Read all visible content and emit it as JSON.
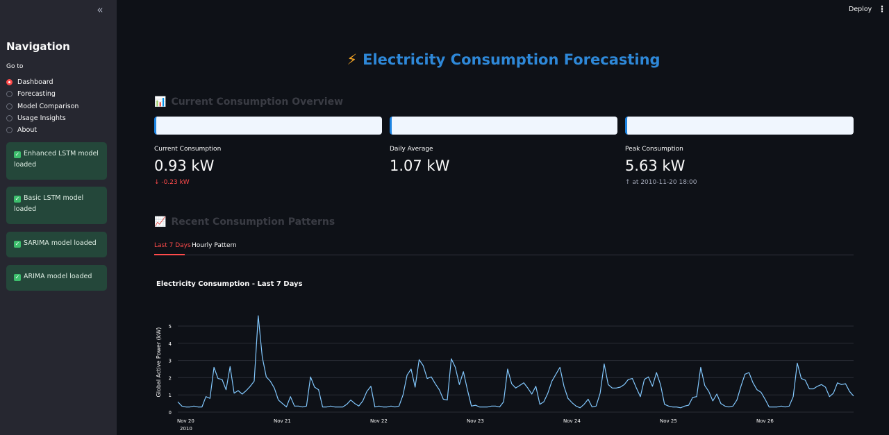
{
  "sidebar": {
    "collapse_icon": "«",
    "title": "Navigation",
    "goto_label": "Go to",
    "nav_items": [
      {
        "label": "Dashboard",
        "selected": true
      },
      {
        "label": "Forecasting",
        "selected": false
      },
      {
        "label": "Model Comparison",
        "selected": false
      },
      {
        "label": "Usage Insights",
        "selected": false
      },
      {
        "label": "About",
        "selected": false
      }
    ],
    "alerts": [
      {
        "text": "Enhanced LSTM model loaded"
      },
      {
        "text": "Basic LSTM model loaded"
      },
      {
        "text": "SARIMA model loaded"
      },
      {
        "text": "ARIMA model loaded"
      }
    ]
  },
  "topbar": {
    "deploy_label": "Deploy",
    "menu_icon": "⋮"
  },
  "header": {
    "icon": "⚡",
    "title": "Electricity Consumption Forecasting"
  },
  "overview": {
    "heading_icon": "📊",
    "heading": "Current Consumption Overview",
    "metrics": [
      {
        "label": "Current Consumption",
        "value": "0.93 kW",
        "delta": "-0.23 kW",
        "delta_icon": "↓"
      },
      {
        "label": "Daily Average",
        "value": "1.07 kW"
      },
      {
        "label": "Peak Consumption",
        "value": "5.63 kW",
        "delta": "at 2010-11-20 18:00",
        "delta_icon": "↑"
      }
    ]
  },
  "patterns": {
    "heading_icon": "📈",
    "heading": "Recent Consumption Patterns",
    "tabs": [
      {
        "label": "Last 7 Days",
        "active": true
      },
      {
        "label": "Hourly Pattern",
        "active": false
      }
    ]
  },
  "colors": {
    "accent": "#ff4b4b",
    "title_blue": "#2e88d8",
    "line": "#83c9ff",
    "success_bg": "#24473a"
  },
  "chart_data": {
    "type": "line",
    "title": "Electricity Consumption - Last 7 Days",
    "ylabel": "Global Active Power (kW)",
    "xlabel": "",
    "x_tick_labels": [
      "Nov 20",
      "Nov 21",
      "Nov 22",
      "Nov 23",
      "Nov 24",
      "Nov 25",
      "Nov 26"
    ],
    "x_year_label": "2010",
    "y_ticks": [
      0,
      1,
      2,
      3,
      4,
      5
    ],
    "ylim": [
      0,
      5.6
    ],
    "x_start": "2010-11-20 00:00",
    "frequency": "hourly",
    "grid": true,
    "series": [
      {
        "values": [
          0.6,
          0.35,
          0.3,
          0.3,
          0.35,
          0.3,
          0.3,
          0.9,
          0.8,
          2.6,
          1.95,
          1.9,
          1.3,
          2.65,
          1.1,
          1.25,
          1.05,
          1.25,
          1.5,
          1.8,
          5.6,
          3.2,
          2.05,
          1.8,
          1.4,
          0.7,
          0.5,
          0.3,
          0.9,
          0.35,
          0.35,
          0.3,
          0.35,
          2.05,
          1.45,
          1.3,
          0.3,
          0.3,
          0.35,
          0.3,
          0.3,
          0.3,
          0.45,
          0.7,
          0.5,
          0.35,
          0.65,
          1.2,
          1.5,
          0.3,
          0.35,
          0.3,
          0.3,
          0.35,
          0.3,
          0.35,
          1.0,
          2.15,
          2.5,
          1.45,
          3.05,
          2.7,
          1.95,
          2.05,
          1.65,
          1.3,
          0.75,
          0.7,
          3.1,
          2.6,
          1.6,
          2.35,
          1.3,
          0.35,
          0.4,
          0.3,
          0.3,
          0.3,
          0.35,
          0.35,
          0.3,
          0.6,
          2.5,
          1.65,
          1.4,
          1.55,
          1.7,
          1.4,
          1.05,
          1.5,
          0.45,
          0.6,
          1.1,
          1.8,
          2.2,
          2.6,
          1.5,
          0.8,
          0.55,
          0.35,
          0.25,
          0.45,
          0.75,
          0.3,
          0.35,
          1.1,
          2.8,
          1.6,
          1.4,
          1.4,
          1.45,
          1.6,
          1.9,
          1.95,
          1.4,
          0.9,
          1.9,
          2.05,
          1.5,
          2.3,
          1.6,
          0.45,
          0.35,
          0.3,
          0.3,
          0.25,
          0.35,
          0.4,
          0.85,
          0.9,
          2.6,
          1.55,
          1.2,
          0.65,
          1.05,
          0.5,
          0.35,
          0.3,
          0.35,
          0.7,
          1.5,
          2.2,
          2.3,
          1.7,
          1.3,
          1.15,
          0.75,
          0.3,
          0.3,
          0.3,
          0.35,
          0.3,
          0.35,
          0.9,
          2.85,
          1.95,
          1.85,
          1.35,
          1.35,
          1.5,
          1.6,
          1.45,
          0.9,
          1.1,
          1.7,
          1.6,
          1.65,
          1.2,
          0.93
        ]
      }
    ]
  }
}
